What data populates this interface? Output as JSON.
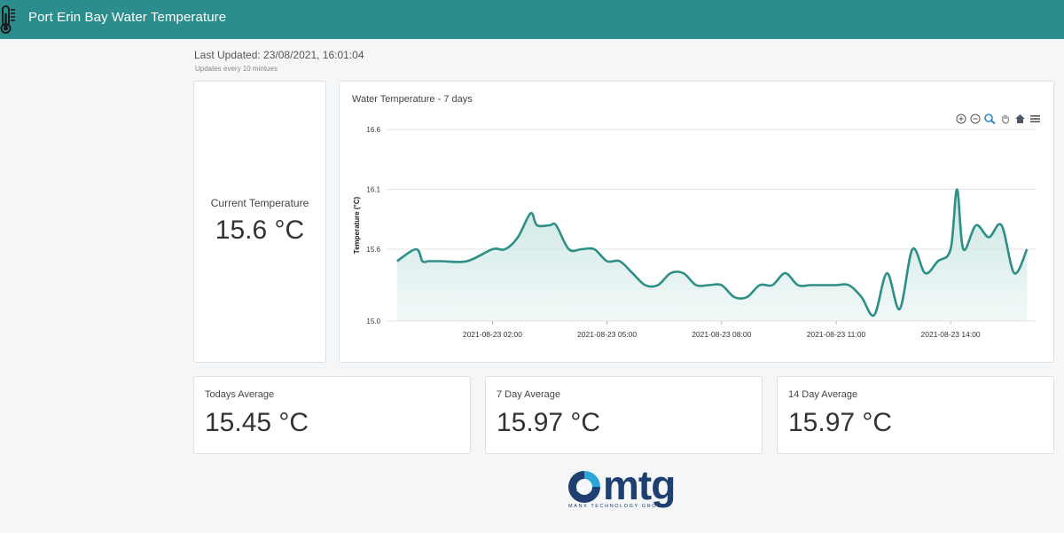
{
  "header": {
    "title": "Port Erin Bay Water Temperature",
    "icon": "thermometer-icon"
  },
  "status": {
    "last_updated": "Last Updated: 23/08/2021, 16:01:04",
    "update_note": "Updates every 10 mintues"
  },
  "current": {
    "label": "Current Temperature",
    "value": "15.6 °C"
  },
  "chart": {
    "title": "Water Temperature - 7 days",
    "toolbar": [
      "zoom-in-icon",
      "zoom-out-icon",
      "zoom-select-icon",
      "pan-icon",
      "reset-home-icon",
      "menu-icon"
    ]
  },
  "stats": [
    {
      "label": "Todays Average",
      "value": "15.45 °C"
    },
    {
      "label": "7 Day Average",
      "value": "15.97 °C"
    },
    {
      "label": "14 Day Average",
      "value": "15.97 °C"
    }
  ],
  "logo": {
    "wordmark": "mtg",
    "tagline": "MANX TECHNOLOGY GROUP"
  },
  "colors": {
    "header_bg": "#2b8e8c",
    "series_line": "#2e8f87",
    "series_fill": "#c9e5e2",
    "logo_navy": "#1e3f6f",
    "logo_cyan": "#2aa7d8"
  },
  "chart_data": {
    "type": "area",
    "title": "Water Temperature - 7 days",
    "xlabel": "",
    "ylabel": "Temperature (°C)",
    "ylim": [
      15.0,
      16.6
    ],
    "yticks": [
      15.0,
      15.6,
      16.1,
      16.6
    ],
    "xticks": [
      "2021-08-23 02:00",
      "2021-08-23 05:00",
      "2021-08-23 08:00",
      "2021-08-23 11:00",
      "2021-08-23 14:00"
    ],
    "grid": true,
    "legend": "none",
    "series": [
      {
        "x": [
          "2021-08-22 23:30",
          "2021-08-23 00:00",
          "2021-08-23 00:10",
          "2021-08-23 00:20",
          "2021-08-23 00:40",
          "2021-08-23 01:20",
          "2021-08-23 02:00",
          "2021-08-23 02:20",
          "2021-08-23 02:40",
          "2021-08-23 03:00",
          "2021-08-23 03:10",
          "2021-08-23 03:30",
          "2021-08-23 03:40",
          "2021-08-23 04:00",
          "2021-08-23 04:20",
          "2021-08-23 04:40",
          "2021-08-23 05:00",
          "2021-08-23 05:20",
          "2021-08-23 05:40",
          "2021-08-23 06:00",
          "2021-08-23 06:20",
          "2021-08-23 06:40",
          "2021-08-23 07:00",
          "2021-08-23 07:20",
          "2021-08-23 07:40",
          "2021-08-23 08:00",
          "2021-08-23 08:20",
          "2021-08-23 08:40",
          "2021-08-23 09:00",
          "2021-08-23 09:20",
          "2021-08-23 09:40",
          "2021-08-23 10:00",
          "2021-08-23 10:20",
          "2021-08-23 10:40",
          "2021-08-23 11:00",
          "2021-08-23 11:20",
          "2021-08-23 11:40",
          "2021-08-23 12:00",
          "2021-08-23 12:20",
          "2021-08-23 12:40",
          "2021-08-23 13:00",
          "2021-08-23 13:20",
          "2021-08-23 13:40",
          "2021-08-23 14:00",
          "2021-08-23 14:10",
          "2021-08-23 14:20",
          "2021-08-23 14:40",
          "2021-08-23 15:00",
          "2021-08-23 15:20",
          "2021-08-23 15:40",
          "2021-08-23 16:00"
        ],
        "values": [
          15.5,
          15.6,
          15.5,
          15.5,
          15.5,
          15.5,
          15.6,
          15.6,
          15.7,
          15.9,
          15.8,
          15.8,
          15.8,
          15.6,
          15.6,
          15.6,
          15.5,
          15.5,
          15.4,
          15.3,
          15.3,
          15.4,
          15.4,
          15.3,
          15.3,
          15.3,
          15.2,
          15.2,
          15.3,
          15.3,
          15.4,
          15.3,
          15.3,
          15.3,
          15.3,
          15.3,
          15.2,
          15.05,
          15.4,
          15.1,
          15.6,
          15.4,
          15.5,
          15.6,
          16.1,
          15.6,
          15.8,
          15.7,
          15.8,
          15.4,
          15.6
        ]
      }
    ]
  }
}
